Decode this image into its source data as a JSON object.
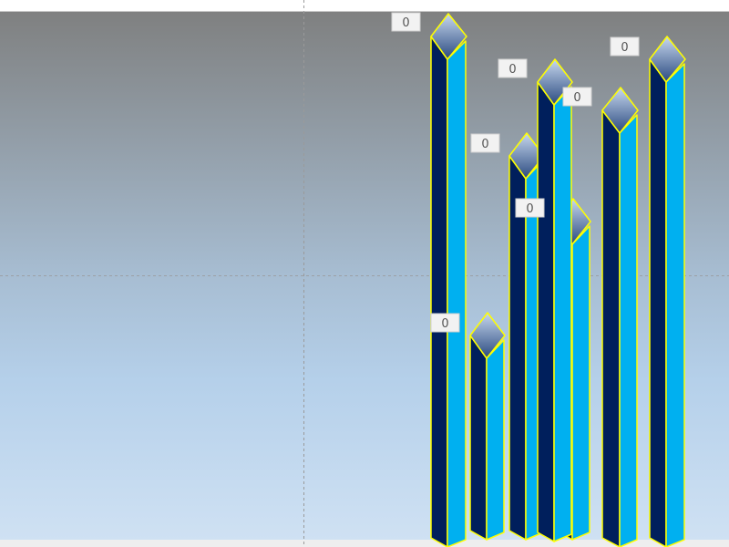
{
  "chart_data": {
    "type": "bar",
    "style": "3d-prism",
    "title": "",
    "xlabel": "",
    "ylabel": "",
    "grid": true,
    "legend": "none",
    "data_labels": [
      "0",
      "0",
      "0",
      "0",
      "0",
      "0",
      "0"
    ],
    "colors": {
      "left_face": "#001f5c",
      "right_face": "#00b0f0",
      "outline": "#ffff00",
      "top_light": "#c8d8ee",
      "top_dark": "#2a4a80",
      "background_top": "#7f8080",
      "background_bottom": "#cfe1f3",
      "label_bg": "#f2f2f2"
    }
  }
}
